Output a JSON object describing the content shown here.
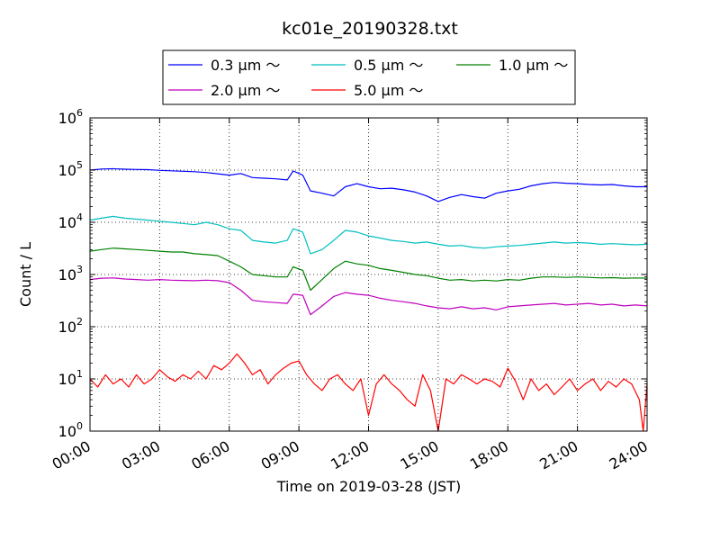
{
  "chart_data": {
    "type": "line",
    "title": "kc01e_20190328.txt",
    "xlabel": "Time on 2019-03-28 (JST)",
    "ylabel": "Count / L",
    "yscale": "log",
    "ylim": [
      1,
      1000000
    ],
    "xlim": [
      "00:00",
      "24:00"
    ],
    "grid": true,
    "legend_position": "top-center",
    "x_ticks": [
      "00:00",
      "03:00",
      "06:00",
      "09:00",
      "12:00",
      "15:00",
      "18:00",
      "21:00",
      "24:00"
    ],
    "y_ticks": [
      {
        "value": 1,
        "base": "10",
        "exp": "0"
      },
      {
        "value": 10,
        "base": "10",
        "exp": "1"
      },
      {
        "value": 100,
        "base": "10",
        "exp": "2"
      },
      {
        "value": 1000,
        "base": "10",
        "exp": "3"
      },
      {
        "value": 10000,
        "base": "10",
        "exp": "4"
      },
      {
        "value": 100000,
        "base": "10",
        "exp": "5"
      },
      {
        "value": 1000000,
        "base": "10",
        "exp": "6"
      }
    ],
    "series": [
      {
        "name": "0.3 μm ～",
        "color": "#0000ff",
        "points": [
          [
            "00:00",
            100000
          ],
          [
            "00:30",
            105000
          ],
          [
            "01:00",
            106000
          ],
          [
            "01:30",
            104000
          ],
          [
            "02:00",
            103000
          ],
          [
            "02:30",
            102000
          ],
          [
            "03:00",
            99000
          ],
          [
            "03:30",
            97000
          ],
          [
            "04:00",
            95000
          ],
          [
            "04:30",
            93000
          ],
          [
            "05:00",
            90000
          ],
          [
            "05:30",
            85000
          ],
          [
            "06:00",
            80000
          ],
          [
            "06:30",
            86000
          ],
          [
            "07:00",
            72000
          ],
          [
            "07:30",
            70000
          ],
          [
            "08:00",
            68000
          ],
          [
            "08:30",
            65000
          ],
          [
            "08:45",
            96000
          ],
          [
            "09:10",
            80000
          ],
          [
            "09:30",
            40000
          ],
          [
            "10:00",
            36000
          ],
          [
            "10:30",
            32000
          ],
          [
            "11:00",
            48000
          ],
          [
            "11:30",
            55000
          ],
          [
            "12:00",
            48000
          ],
          [
            "12:30",
            44000
          ],
          [
            "13:00",
            45000
          ],
          [
            "13:30",
            42000
          ],
          [
            "14:00",
            38000
          ],
          [
            "14:30",
            32000
          ],
          [
            "15:00",
            25000
          ],
          [
            "15:30",
            30000
          ],
          [
            "16:00",
            34000
          ],
          [
            "16:30",
            31000
          ],
          [
            "17:00",
            29000
          ],
          [
            "17:30",
            36000
          ],
          [
            "18:00",
            40000
          ],
          [
            "18:30",
            43000
          ],
          [
            "19:00",
            50000
          ],
          [
            "19:30",
            55000
          ],
          [
            "20:00",
            58000
          ],
          [
            "20:30",
            56000
          ],
          [
            "21:00",
            55000
          ],
          [
            "21:30",
            53000
          ],
          [
            "22:00",
            52000
          ],
          [
            "22:30",
            53000
          ],
          [
            "23:00",
            50000
          ],
          [
            "23:30",
            48000
          ],
          [
            "24:00",
            48000
          ]
        ]
      },
      {
        "name": "0.5 μm ～",
        "color": "#00bfbf",
        "points": [
          [
            "00:00",
            11000
          ],
          [
            "00:30",
            12000
          ],
          [
            "01:00",
            13000
          ],
          [
            "01:30",
            12000
          ],
          [
            "02:00",
            11500
          ],
          [
            "02:30",
            11000
          ],
          [
            "03:00",
            10500
          ],
          [
            "03:30",
            10000
          ],
          [
            "04:00",
            9500
          ],
          [
            "04:30",
            9000
          ],
          [
            "05:00",
            10000
          ],
          [
            "05:30",
            9000
          ],
          [
            "06:00",
            7500
          ],
          [
            "06:30",
            7000
          ],
          [
            "07:00",
            4500
          ],
          [
            "07:30",
            4200
          ],
          [
            "08:00",
            4000
          ],
          [
            "08:30",
            4500
          ],
          [
            "08:45",
            7500
          ],
          [
            "09:10",
            6500
          ],
          [
            "09:30",
            2500
          ],
          [
            "10:00",
            3000
          ],
          [
            "10:30",
            4500
          ],
          [
            "11:00",
            7000
          ],
          [
            "11:30",
            6500
          ],
          [
            "12:00",
            5500
          ],
          [
            "12:30",
            5000
          ],
          [
            "13:00",
            4500
          ],
          [
            "13:30",
            4300
          ],
          [
            "14:00",
            4000
          ],
          [
            "14:30",
            4200
          ],
          [
            "15:00",
            3800
          ],
          [
            "15:30",
            3500
          ],
          [
            "16:00",
            3600
          ],
          [
            "16:30",
            3300
          ],
          [
            "17:00",
            3200
          ],
          [
            "17:30",
            3400
          ],
          [
            "18:00",
            3500
          ],
          [
            "18:30",
            3600
          ],
          [
            "19:00",
            3800
          ],
          [
            "19:30",
            4000
          ],
          [
            "20:00",
            4200
          ],
          [
            "20:30",
            4000
          ],
          [
            "21:00",
            4100
          ],
          [
            "21:30",
            4000
          ],
          [
            "22:00",
            3800
          ],
          [
            "22:30",
            3900
          ],
          [
            "23:00",
            3800
          ],
          [
            "23:30",
            3700
          ],
          [
            "24:00",
            3800
          ]
        ]
      },
      {
        "name": "1.0 μm ～",
        "color": "#008000",
        "points": [
          [
            "00:00",
            2800
          ],
          [
            "00:30",
            3000
          ],
          [
            "01:00",
            3200
          ],
          [
            "01:30",
            3100
          ],
          [
            "02:00",
            3000
          ],
          [
            "02:30",
            2900
          ],
          [
            "03:00",
            2800
          ],
          [
            "03:30",
            2700
          ],
          [
            "04:00",
            2700
          ],
          [
            "04:30",
            2500
          ],
          [
            "05:00",
            2400
          ],
          [
            "05:30",
            2300
          ],
          [
            "06:00",
            1800
          ],
          [
            "06:30",
            1400
          ],
          [
            "07:00",
            1000
          ],
          [
            "07:30",
            950
          ],
          [
            "08:00",
            900
          ],
          [
            "08:30",
            900
          ],
          [
            "08:45",
            1400
          ],
          [
            "09:10",
            1200
          ],
          [
            "09:30",
            500
          ],
          [
            "10:00",
            800
          ],
          [
            "10:30",
            1300
          ],
          [
            "11:00",
            1800
          ],
          [
            "11:30",
            1600
          ],
          [
            "12:00",
            1500
          ],
          [
            "12:30",
            1300
          ],
          [
            "13:00",
            1200
          ],
          [
            "13:30",
            1100
          ],
          [
            "14:00",
            1000
          ],
          [
            "14:30",
            950
          ],
          [
            "15:00",
            850
          ],
          [
            "15:30",
            780
          ],
          [
            "16:00",
            800
          ],
          [
            "16:30",
            750
          ],
          [
            "17:00",
            780
          ],
          [
            "17:30",
            750
          ],
          [
            "18:00",
            800
          ],
          [
            "18:30",
            780
          ],
          [
            "19:00",
            850
          ],
          [
            "19:30",
            900
          ],
          [
            "20:00",
            900
          ],
          [
            "20:30",
            880
          ],
          [
            "21:00",
            900
          ],
          [
            "21:30",
            880
          ],
          [
            "22:00",
            860
          ],
          [
            "22:30",
            870
          ],
          [
            "23:00",
            850
          ],
          [
            "23:30",
            860
          ],
          [
            "24:00",
            850
          ]
        ]
      },
      {
        "name": "2.0 μm ～",
        "color": "#bf00bf",
        "points": [
          [
            "00:00",
            800
          ],
          [
            "00:30",
            850
          ],
          [
            "01:00",
            860
          ],
          [
            "01:30",
            820
          ],
          [
            "02:00",
            800
          ],
          [
            "02:30",
            780
          ],
          [
            "03:00",
            800
          ],
          [
            "03:30",
            780
          ],
          [
            "04:00",
            770
          ],
          [
            "04:30",
            760
          ],
          [
            "05:00",
            780
          ],
          [
            "05:30",
            760
          ],
          [
            "06:00",
            700
          ],
          [
            "06:30",
            500
          ],
          [
            "07:00",
            320
          ],
          [
            "07:30",
            300
          ],
          [
            "08:00",
            290
          ],
          [
            "08:30",
            280
          ],
          [
            "08:45",
            420
          ],
          [
            "09:10",
            400
          ],
          [
            "09:30",
            170
          ],
          [
            "10:00",
            250
          ],
          [
            "10:30",
            380
          ],
          [
            "11:00",
            450
          ],
          [
            "11:30",
            420
          ],
          [
            "12:00",
            400
          ],
          [
            "12:30",
            350
          ],
          [
            "13:00",
            320
          ],
          [
            "13:30",
            300
          ],
          [
            "14:00",
            280
          ],
          [
            "14:30",
            250
          ],
          [
            "15:00",
            230
          ],
          [
            "15:30",
            220
          ],
          [
            "16:00",
            240
          ],
          [
            "16:30",
            220
          ],
          [
            "17:00",
            230
          ],
          [
            "17:30",
            210
          ],
          [
            "18:00",
            240
          ],
          [
            "18:30",
            250
          ],
          [
            "19:00",
            260
          ],
          [
            "19:30",
            270
          ],
          [
            "20:00",
            280
          ],
          [
            "20:30",
            260
          ],
          [
            "21:00",
            270
          ],
          [
            "21:30",
            280
          ],
          [
            "22:00",
            260
          ],
          [
            "22:30",
            270
          ],
          [
            "23:00",
            250
          ],
          [
            "23:30",
            260
          ],
          [
            "24:00",
            250
          ]
        ]
      },
      {
        "name": "5.0 μm ～",
        "color": "#ff0000",
        "points": [
          [
            "00:00",
            10
          ],
          [
            "00:20",
            7
          ],
          [
            "00:40",
            12
          ],
          [
            "01:00",
            8
          ],
          [
            "01:20",
            10
          ],
          [
            "01:40",
            7
          ],
          [
            "02:00",
            12
          ],
          [
            "02:20",
            8
          ],
          [
            "02:40",
            10
          ],
          [
            "03:00",
            15
          ],
          [
            "03:20",
            11
          ],
          [
            "03:40",
            9
          ],
          [
            "04:00",
            12
          ],
          [
            "04:20",
            10
          ],
          [
            "04:40",
            14
          ],
          [
            "05:00",
            10
          ],
          [
            "05:20",
            18
          ],
          [
            "05:40",
            15
          ],
          [
            "06:00",
            20
          ],
          [
            "06:20",
            30
          ],
          [
            "06:40",
            20
          ],
          [
            "07:00",
            12
          ],
          [
            "07:20",
            15
          ],
          [
            "07:40",
            8
          ],
          [
            "08:00",
            12
          ],
          [
            "08:20",
            16
          ],
          [
            "08:40",
            20
          ],
          [
            "09:00",
            22
          ],
          [
            "09:20",
            12
          ],
          [
            "09:40",
            8
          ],
          [
            "10:00",
            6
          ],
          [
            "10:20",
            10
          ],
          [
            "10:40",
            12
          ],
          [
            "11:00",
            8
          ],
          [
            "11:20",
            6
          ],
          [
            "11:40",
            10
          ],
          [
            "12:00",
            2
          ],
          [
            "12:20",
            8
          ],
          [
            "12:40",
            12
          ],
          [
            "13:00",
            8
          ],
          [
            "13:20",
            6
          ],
          [
            "13:40",
            4
          ],
          [
            "14:00",
            3
          ],
          [
            "14:20",
            12
          ],
          [
            "14:40",
            6
          ],
          [
            "15:00",
            1
          ],
          [
            "15:20",
            10
          ],
          [
            "15:40",
            8
          ],
          [
            "16:00",
            12
          ],
          [
            "16:20",
            10
          ],
          [
            "16:40",
            8
          ],
          [
            "17:00",
            10
          ],
          [
            "17:20",
            9
          ],
          [
            "17:40",
            7
          ],
          [
            "18:00",
            16
          ],
          [
            "18:20",
            9
          ],
          [
            "18:40",
            4
          ],
          [
            "19:00",
            10
          ],
          [
            "19:20",
            6
          ],
          [
            "19:40",
            8
          ],
          [
            "20:00",
            5
          ],
          [
            "20:20",
            7
          ],
          [
            "20:40",
            10
          ],
          [
            "21:00",
            6
          ],
          [
            "21:20",
            8
          ],
          [
            "21:40",
            10
          ],
          [
            "22:00",
            6
          ],
          [
            "22:20",
            9
          ],
          [
            "22:40",
            7
          ],
          [
            "23:00",
            10
          ],
          [
            "23:20",
            8
          ],
          [
            "23:40",
            4
          ],
          [
            "23:50",
            1
          ],
          [
            "24:00",
            8
          ]
        ]
      }
    ]
  }
}
